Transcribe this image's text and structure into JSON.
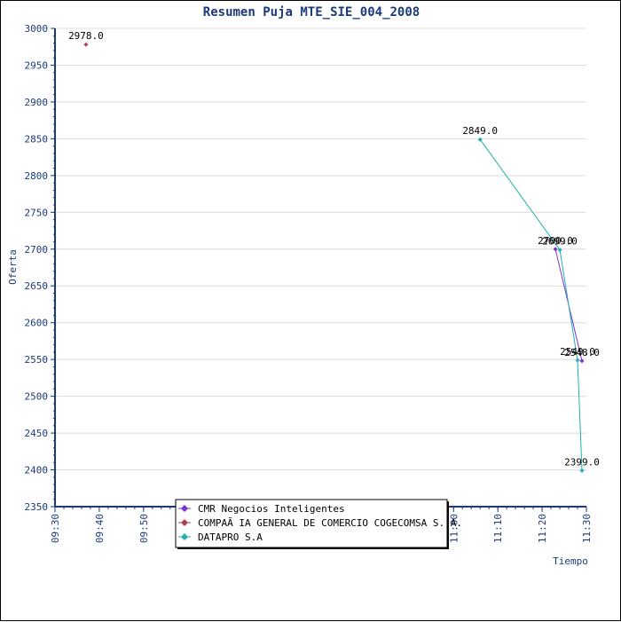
{
  "chart_data": {
    "type": "line",
    "title": "Resumen Puja MTE_SIE_004_2008",
    "xlabel": "Tiempo",
    "ylabel": "Oferta",
    "ylim": [
      2350,
      3000
    ],
    "yticks": [
      2350,
      2400,
      2450,
      2500,
      2550,
      2600,
      2650,
      2700,
      2750,
      2800,
      2850,
      2900,
      2950,
      3000
    ],
    "xlim": [
      "09:30",
      "11:30"
    ],
    "xticks": [
      "09:30",
      "09:40",
      "09:50",
      "10:00",
      "10:10",
      "10:20",
      "10:30",
      "10:40",
      "10:50",
      "11:00",
      "11:10",
      "11:20",
      "11:30"
    ],
    "grid": "horizontal",
    "legend_position": "bottom-center",
    "series": [
      {
        "name": "CMR Negocios Inteligentes",
        "color": "#7b2fd6",
        "x": [
          "11:23",
          "11:29"
        ],
        "y": [
          2700,
          2548
        ],
        "labels": [
          "2700.0",
          "2548.0"
        ]
      },
      {
        "name": "COMPAÃ IA GENERAL DE COMERCIO COGECOMSA S. A.",
        "color": "#b04050",
        "x": [
          "09:37"
        ],
        "y": [
          2978
        ],
        "labels": [
          "2978.0"
        ]
      },
      {
        "name": "DATAPRO S.A",
        "color": "#20b0b0",
        "x": [
          "11:06",
          "11:24",
          "11:28",
          "11:29"
        ],
        "y": [
          2849,
          2699,
          2549,
          2399
        ],
        "labels": [
          "2849.0",
          "2699.0",
          "2549.0",
          "2399.0"
        ]
      }
    ]
  }
}
